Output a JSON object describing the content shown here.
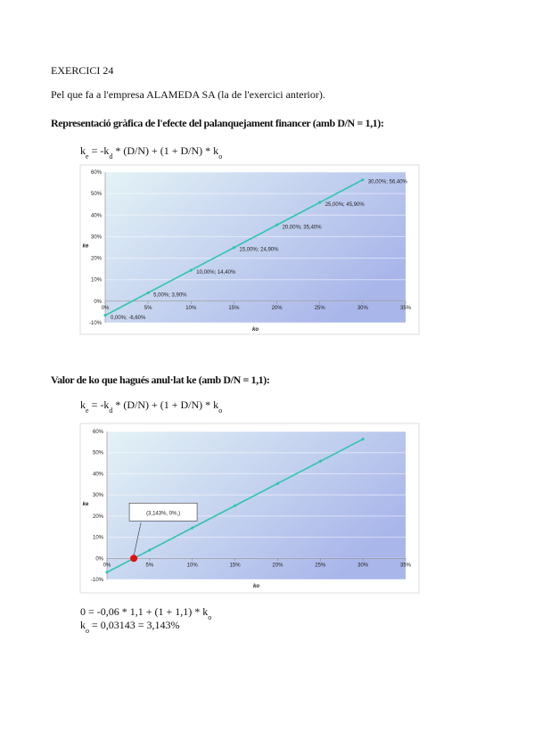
{
  "document": {
    "title": "EXERCICI 24",
    "intro": "Pel que fa a l'empresa ALAMEDA SA (la de l'exercici anterior).",
    "heading_1": "Representació gràfica de l'efecte del palanquejament financer (amb D/N = 1,1):",
    "formula_1": [
      "k",
      "e",
      " = -k",
      "d",
      " * (D/N) + (1 + D/N) * k",
      "o"
    ],
    "heading_2": "Valor de ko que hagués anul·lat ke (amb D/N = 1,1):",
    "formula_2": [
      "k",
      "e",
      " = -k",
      "d",
      " * (D/N) + (1 + D/N) * k",
      "o"
    ],
    "result_1": [
      "0 = -0,06 * 1,1 + (1 + 1,1) * k",
      "o"
    ],
    "result_2": [
      "k",
      "o",
      " = 0,03143 = 3,143%"
    ]
  },
  "chart_data": [
    {
      "type": "line",
      "xlabel": "ko",
      "ylabel": "ke",
      "x": [
        0,
        5,
        10,
        15,
        20,
        25,
        30
      ],
      "series": [
        {
          "color": "#2fc4ae",
          "values": [
            -6.6,
            3.9,
            14.4,
            24.9,
            35.4,
            45.9,
            56.4
          ],
          "value_labels": [
            "0,00%; -6,60%",
            "5,00%; 3,90%",
            "10,00%; 14,40%",
            "15,00%; 24,90%",
            "20,00%; 35,40%",
            "25,00%; 45,90%",
            "30,00%; 56,40%"
          ]
        }
      ],
      "xlim": [
        0,
        35
      ],
      "xticks": [
        {
          "value": 0,
          "label": "0%"
        },
        {
          "value": 5,
          "label": "5%"
        },
        {
          "value": 10,
          "label": "10%"
        },
        {
          "value": 15,
          "label": "15%"
        },
        {
          "value": 20,
          "label": "20%"
        },
        {
          "value": 25,
          "label": "25%"
        },
        {
          "value": 30,
          "label": "30%"
        },
        {
          "value": 35,
          "label": "35%"
        }
      ],
      "ylim": [
        -10,
        60
      ],
      "yticks": [
        {
          "value": -10,
          "label": "-10%"
        },
        {
          "value": 0,
          "label": "0%"
        },
        {
          "value": 10,
          "label": "10%"
        },
        {
          "value": 20,
          "label": "20%"
        },
        {
          "value": 30,
          "label": "30%"
        },
        {
          "value": 40,
          "label": "40%"
        },
        {
          "value": 50,
          "label": "50%"
        },
        {
          "value": 60,
          "label": "60%"
        }
      ]
    },
    {
      "type": "line",
      "xlabel": "ko",
      "ylabel": "ke",
      "x": [
        0,
        5,
        10,
        15,
        20,
        25,
        30
      ],
      "series": [
        {
          "color": "#2fc4ae",
          "values": [
            -6.6,
            3.9,
            14.4,
            24.9,
            35.4,
            45.9,
            56.4
          ]
        }
      ],
      "highlight": {
        "x": 3.143,
        "y": 0,
        "label": "(3,143%, 0%,)",
        "color": "#e01010"
      },
      "xlim": [
        0,
        35
      ],
      "xticks": [
        {
          "value": 0,
          "label": "0%"
        },
        {
          "value": 5,
          "label": "5%"
        },
        {
          "value": 10,
          "label": "10%"
        },
        {
          "value": 15,
          "label": "15%"
        },
        {
          "value": 20,
          "label": "20%"
        },
        {
          "value": 25,
          "label": "25%"
        },
        {
          "value": 30,
          "label": "30%"
        },
        {
          "value": 35,
          "label": "35%"
        }
      ],
      "ylim": [
        -10,
        60
      ],
      "yticks": [
        {
          "value": -10,
          "label": "-10%"
        },
        {
          "value": 0,
          "label": "0%"
        },
        {
          "value": 10,
          "label": "10%"
        },
        {
          "value": 20,
          "label": "20%"
        },
        {
          "value": 30,
          "label": "30%"
        },
        {
          "value": 40,
          "label": "40%"
        },
        {
          "value": 50,
          "label": "50%"
        },
        {
          "value": 60,
          "label": "60%"
        }
      ]
    }
  ]
}
